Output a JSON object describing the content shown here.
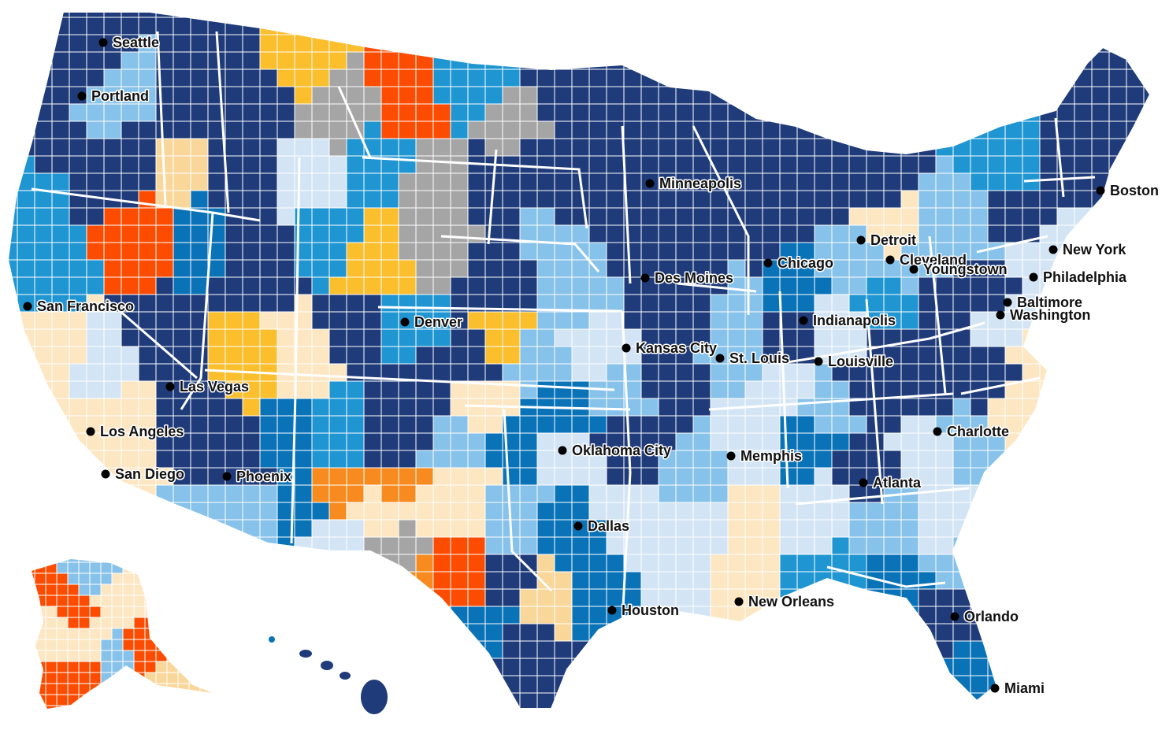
{
  "palette": {
    "navy": "#1f3b7a",
    "blue": "#0a73b8",
    "mid_blue": "#1f96d2",
    "light_blue": "#87c2ea",
    "pale_blue": "#d3e5f5",
    "cream": "#fde6c2",
    "tan": "#f9d79b",
    "yellow": "#fbbe2c",
    "orange": "#f78b1f",
    "red_orange": "#fc4c02",
    "gray": "#a5a5a5",
    "border": "#ffffff"
  },
  "cities": [
    {
      "name": "Seattle"
    },
    {
      "name": "Portland"
    },
    {
      "name": "San Francisco"
    },
    {
      "name": "Las Vegas"
    },
    {
      "name": "Los Angeles"
    },
    {
      "name": "San Diego"
    },
    {
      "name": "Phoenix"
    },
    {
      "name": "Denver"
    },
    {
      "name": "Oklahoma City"
    },
    {
      "name": "Dallas"
    },
    {
      "name": "Houston"
    },
    {
      "name": "Kansas City"
    },
    {
      "name": "Minneapolis"
    },
    {
      "name": "Des Moines"
    },
    {
      "name": "Chicago"
    },
    {
      "name": "St. Louis"
    },
    {
      "name": "Memphis"
    },
    {
      "name": "New Orleans"
    },
    {
      "name": "Indianapolis"
    },
    {
      "name": "Louisville"
    },
    {
      "name": "Detroit"
    },
    {
      "name": "Cleveland"
    },
    {
      "name": "Youngstown"
    },
    {
      "name": "Atlanta"
    },
    {
      "name": "Charlotte"
    },
    {
      "name": "Orlando"
    },
    {
      "name": "Miami"
    },
    {
      "name": "Washington"
    },
    {
      "name": "Baltimore"
    },
    {
      "name": "Philadelphia"
    },
    {
      "name": "New York"
    },
    {
      "name": "Boston"
    }
  ]
}
